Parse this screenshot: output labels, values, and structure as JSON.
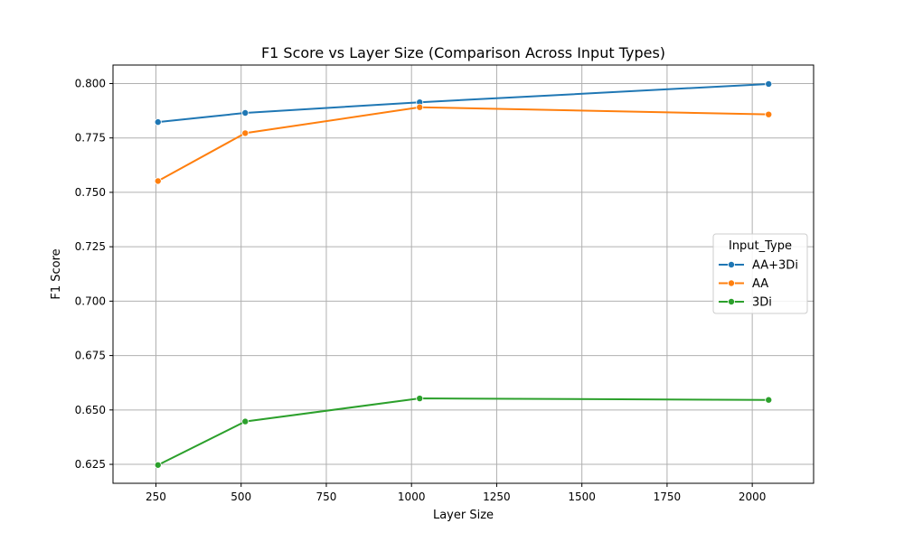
{
  "chart_data": {
    "type": "line",
    "title": "F1 Score vs Layer Size (Comparison Across Input Types)",
    "xlabel": "Layer Size",
    "ylabel": "F1 Score",
    "x": [
      256,
      512,
      1024,
      2048
    ],
    "xlim": [
      124,
      2180
    ],
    "ylim": [
      0.6163,
      0.8085
    ],
    "xticks": [
      250,
      500,
      750,
      1000,
      1250,
      1500,
      1750,
      2000
    ],
    "xtick_labels": [
      "250",
      "500",
      "750",
      "1000",
      "1250",
      "1500",
      "1750",
      "2000"
    ],
    "yticks": [
      0.625,
      0.65,
      0.675,
      0.7,
      0.725,
      0.75,
      0.775,
      0.8
    ],
    "ytick_labels": [
      "0.625",
      "0.650",
      "0.675",
      "0.700",
      "0.725",
      "0.750",
      "0.775",
      "0.800"
    ],
    "grid": true,
    "legend": {
      "title": "Input_Type",
      "placement": "center-right"
    },
    "series": [
      {
        "name": "AA+3Di",
        "color": "#1f77b4",
        "values": [
          0.7823,
          0.7865,
          0.7914,
          0.7998
        ]
      },
      {
        "name": "AA",
        "color": "#ff7f0e",
        "values": [
          0.7552,
          0.7772,
          0.7891,
          0.7858
        ]
      },
      {
        "name": "3Di",
        "color": "#2ca02c",
        "values": [
          0.6247,
          0.6447,
          0.6553,
          0.6546
        ]
      }
    ]
  }
}
